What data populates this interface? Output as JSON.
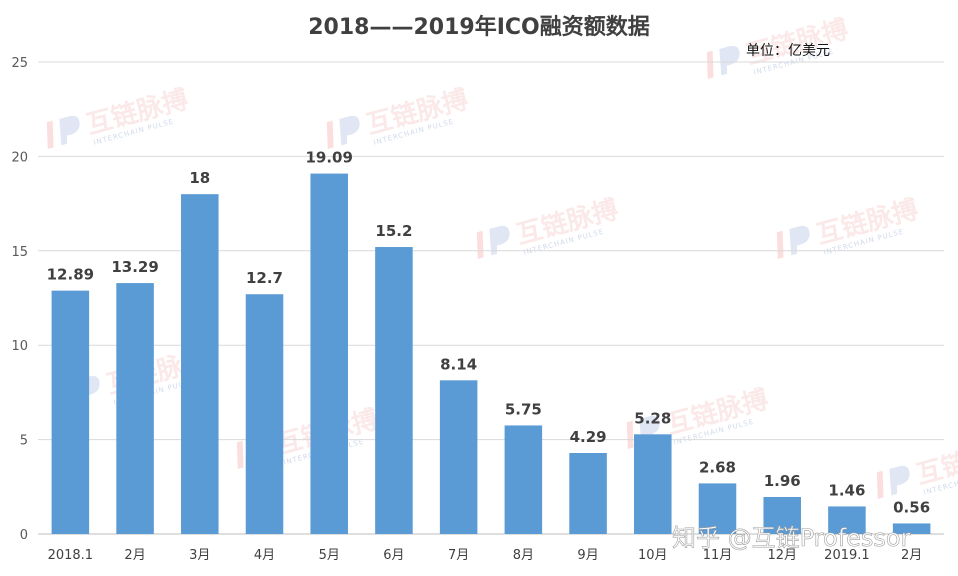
{
  "chart_data": {
    "type": "bar",
    "title": "2018——2019年ICO融资额数据",
    "unit_label": "单位：亿美元",
    "categories": [
      "2018.1",
      "2月",
      "3月",
      "4月",
      "5月",
      "6月",
      "7月",
      "8月",
      "9月",
      "10月",
      "11月",
      "12月",
      "2019.1",
      "2月"
    ],
    "values": [
      12.89,
      13.29,
      18,
      12.7,
      19.09,
      15.2,
      8.14,
      5.75,
      4.29,
      5.28,
      2.68,
      1.96,
      1.46,
      0.56
    ],
    "value_labels": [
      "12.89",
      "13.29",
      "18",
      "12.7",
      "19.09",
      "15.2",
      "8.14",
      "5.75",
      "4.29",
      "5.28",
      "2.68",
      "1.96",
      "1.46",
      "0.56"
    ],
    "y_ticks": [
      "0",
      "5",
      "10",
      "15",
      "20",
      "25"
    ],
    "ylim": [
      0,
      25
    ],
    "grid": true,
    "legend": "none",
    "bar_color": "#5b9bd5"
  },
  "watermark": {
    "text": "互链脉搏",
    "subtext": "INTERCHAIN PULSE"
  },
  "credit": "知乎 @互链Professor"
}
